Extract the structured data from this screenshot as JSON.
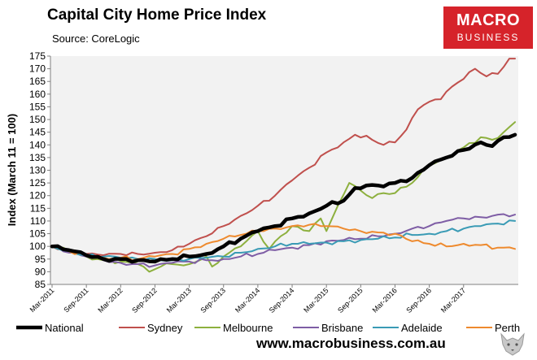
{
  "header": {
    "title": "Capital City Home Price Index",
    "source": "Source: CoreLogic"
  },
  "logo": {
    "line1": "MACRO",
    "line2": "BUSINESS"
  },
  "footer": {
    "website": "www.macrobusiness.com.au"
  },
  "chart_data": {
    "type": "line",
    "title": "Capital City Home Price Index",
    "ylabel": "Index (March 11 = 100)",
    "xlabel": "",
    "ylim": [
      85,
      175
    ],
    "ytick_step": 5,
    "grid": false,
    "legend_position": "bottom",
    "n_months": 82,
    "x_tick_labels": [
      "Mar-2011",
      "Sep-2011",
      "Mar-2012",
      "Sep-2012",
      "Mar-2013",
      "Sep-2013",
      "Mar-2014",
      "Sep-2014",
      "Mar-2015",
      "Sep-2015",
      "Mar-2016",
      "Sep-2016",
      "Mar-2017"
    ],
    "x_tick_months": [
      0,
      6,
      12,
      18,
      24,
      30,
      36,
      42,
      48,
      54,
      60,
      66,
      72
    ],
    "series": [
      {
        "name": "National",
        "color": "#000000",
        "width": 4.5,
        "keys": [
          [
            0,
            100
          ],
          [
            3,
            98.5
          ],
          [
            6,
            96.5
          ],
          [
            9,
            95
          ],
          [
            12,
            95
          ],
          [
            15,
            94.5
          ],
          [
            18,
            94
          ],
          [
            21,
            95
          ],
          [
            24,
            96
          ],
          [
            27,
            97
          ],
          [
            30,
            100
          ],
          [
            33,
            103
          ],
          [
            36,
            106
          ],
          [
            39,
            108
          ],
          [
            42,
            111
          ],
          [
            45,
            113
          ],
          [
            48,
            116
          ],
          [
            51,
            118
          ],
          [
            53,
            123
          ],
          [
            55,
            124
          ],
          [
            57,
            124
          ],
          [
            60,
            125
          ],
          [
            63,
            127
          ],
          [
            66,
            132
          ],
          [
            69,
            135
          ],
          [
            72,
            138
          ],
          [
            75,
            141
          ],
          [
            77,
            139.5
          ],
          [
            79,
            143
          ],
          [
            81,
            144
          ]
        ]
      },
      {
        "name": "Sydney",
        "color": "#c0504d",
        "width": 2,
        "keys": [
          [
            0,
            100
          ],
          [
            3,
            98.5
          ],
          [
            6,
            97
          ],
          [
            9,
            96.5
          ],
          [
            12,
            97
          ],
          [
            15,
            97
          ],
          [
            18,
            97.5
          ],
          [
            21,
            98.5
          ],
          [
            24,
            101
          ],
          [
            27,
            104
          ],
          [
            30,
            108
          ],
          [
            33,
            112
          ],
          [
            36,
            116
          ],
          [
            39,
            120
          ],
          [
            42,
            126
          ],
          [
            45,
            131
          ],
          [
            48,
            137
          ],
          [
            51,
            141
          ],
          [
            53,
            144
          ],
          [
            56,
            142
          ],
          [
            58,
            140
          ],
          [
            60,
            141
          ],
          [
            62,
            146
          ],
          [
            64,
            154
          ],
          [
            66,
            157
          ],
          [
            68,
            158
          ],
          [
            70,
            163
          ],
          [
            72,
            166
          ],
          [
            74,
            170
          ],
          [
            76,
            167
          ],
          [
            78,
            168
          ],
          [
            80,
            174
          ],
          [
            81,
            174
          ]
        ]
      },
      {
        "name": "Melbourne",
        "color": "#8db03e",
        "width": 2,
        "keys": [
          [
            0,
            100
          ],
          [
            3,
            98
          ],
          [
            6,
            96
          ],
          [
            9,
            94.5
          ],
          [
            12,
            94
          ],
          [
            15,
            93
          ],
          [
            17,
            90
          ],
          [
            19,
            92
          ],
          [
            21,
            93
          ],
          [
            24,
            93
          ],
          [
            27,
            96
          ],
          [
            28,
            92
          ],
          [
            30,
            96
          ],
          [
            33,
            100
          ],
          [
            36,
            106
          ],
          [
            38,
            99
          ],
          [
            40,
            104
          ],
          [
            42,
            108
          ],
          [
            45,
            106
          ],
          [
            47,
            111
          ],
          [
            48,
            106
          ],
          [
            50,
            116
          ],
          [
            52,
            125
          ],
          [
            54,
            122
          ],
          [
            56,
            119
          ],
          [
            58,
            121
          ],
          [
            60,
            121
          ],
          [
            63,
            125
          ],
          [
            66,
            132
          ],
          [
            69,
            135
          ],
          [
            72,
            139
          ],
          [
            75,
            143
          ],
          [
            77,
            142
          ],
          [
            79,
            145
          ],
          [
            81,
            149
          ]
        ]
      },
      {
        "name": "Brisbane",
        "color": "#7e5da5",
        "width": 2,
        "keys": [
          [
            0,
            100
          ],
          [
            3,
            97.5
          ],
          [
            6,
            96
          ],
          [
            9,
            94.5
          ],
          [
            12,
            93.5
          ],
          [
            15,
            93
          ],
          [
            18,
            92.5
          ],
          [
            21,
            93.5
          ],
          [
            24,
            94
          ],
          [
            27,
            94.5
          ],
          [
            30,
            95
          ],
          [
            33,
            96
          ],
          [
            36,
            97
          ],
          [
            39,
            98.5
          ],
          [
            42,
            99.5
          ],
          [
            45,
            100.5
          ],
          [
            48,
            102
          ],
          [
            51,
            102.5
          ],
          [
            54,
            103
          ],
          [
            57,
            104
          ],
          [
            60,
            105
          ],
          [
            63,
            107
          ],
          [
            66,
            108
          ],
          [
            69,
            110
          ],
          [
            72,
            111
          ],
          [
            75,
            111.5
          ],
          [
            78,
            112.5
          ],
          [
            81,
            112.5
          ]
        ]
      },
      {
        "name": "Adelaide",
        "color": "#3a9bb5",
        "width": 2,
        "keys": [
          [
            0,
            100
          ],
          [
            3,
            98
          ],
          [
            6,
            96.5
          ],
          [
            9,
            96
          ],
          [
            12,
            95.5
          ],
          [
            15,
            95
          ],
          [
            18,
            95
          ],
          [
            21,
            94.5
          ],
          [
            24,
            95
          ],
          [
            27,
            95.5
          ],
          [
            30,
            96
          ],
          [
            33,
            97.5
          ],
          [
            36,
            99
          ],
          [
            39,
            100
          ],
          [
            42,
            101
          ],
          [
            45,
            101
          ],
          [
            48,
            101.5
          ],
          [
            51,
            102
          ],
          [
            54,
            102.5
          ],
          [
            57,
            103
          ],
          [
            60,
            103.5
          ],
          [
            63,
            104.5
          ],
          [
            66,
            105
          ],
          [
            69,
            106
          ],
          [
            72,
            107
          ],
          [
            75,
            108
          ],
          [
            78,
            109
          ],
          [
            81,
            110
          ]
        ]
      },
      {
        "name": "Perth",
        "color": "#ee8a2e",
        "width": 2,
        "keys": [
          [
            0,
            100
          ],
          [
            3,
            98
          ],
          [
            6,
            96.5
          ],
          [
            9,
            95.5
          ],
          [
            12,
            95.5
          ],
          [
            15,
            95
          ],
          [
            18,
            96
          ],
          [
            21,
            97
          ],
          [
            24,
            99
          ],
          [
            27,
            101
          ],
          [
            30,
            103
          ],
          [
            33,
            104.5
          ],
          [
            36,
            106
          ],
          [
            39,
            107
          ],
          [
            42,
            108
          ],
          [
            45,
            108.5
          ],
          [
            48,
            108
          ],
          [
            51,
            107
          ],
          [
            54,
            106
          ],
          [
            57,
            105.5
          ],
          [
            60,
            105
          ],
          [
            63,
            102
          ],
          [
            66,
            101
          ],
          [
            69,
            100
          ],
          [
            72,
            101
          ],
          [
            75,
            100.5
          ],
          [
            78,
            99.5
          ],
          [
            81,
            99
          ]
        ]
      }
    ]
  }
}
